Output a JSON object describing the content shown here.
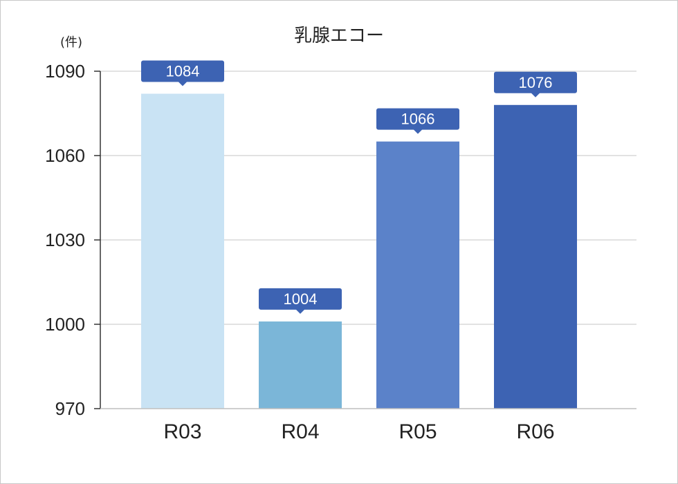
{
  "chart_data": {
    "type": "bar",
    "title": "乳腺エコー",
    "unit_label": "(件)",
    "categories": [
      "R03",
      "R04",
      "R05",
      "R06"
    ],
    "values": [
      1084,
      1004,
      1066,
      1076
    ],
    "bar_heights": [
      1082,
      1001,
      1065,
      1078
    ],
    "bar_colors": [
      "#c9e3f4",
      "#7bb6d8",
      "#5b82c9",
      "#3d63b3"
    ],
    "label_color": "#3d63b3",
    "yticks": [
      970,
      1000,
      1030,
      1060,
      1090
    ],
    "ylim": [
      970,
      1090
    ],
    "grid": true,
    "legend": false
  }
}
